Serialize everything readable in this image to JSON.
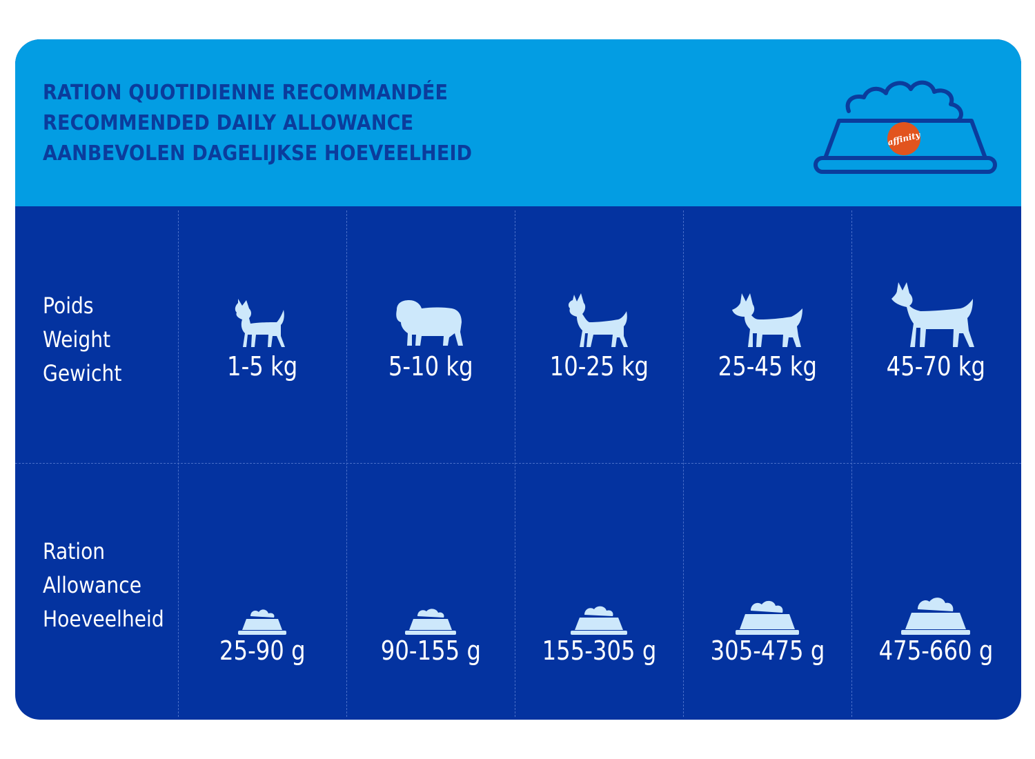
{
  "header": {
    "title_fr": "RATION QUOTIDIENNE RECOMMANDÉE",
    "title_en": "RECOMMENDED DAILY ALLOWANCE",
    "title_nl": "AANBEVOLEN DAGELIJKSE HOEVEELHEID",
    "logo_text": "affinity",
    "icon": "food-bowl-icon"
  },
  "weight_row": {
    "label_fr": "Poids",
    "label_en": "Weight",
    "label_nl": "Gewicht",
    "values": [
      "1-5 kg",
      "5-10 kg",
      "10-25 kg",
      "25-45 kg",
      "45-70 kg"
    ],
    "icons": [
      "chihuahua-icon",
      "bulldog-icon",
      "boxer-icon",
      "husky-icon",
      "great-dane-icon"
    ]
  },
  "ration_row": {
    "label_fr": "Ration",
    "label_en": "Allowance",
    "label_nl": "Hoeveelheid",
    "values": [
      "25-90 g",
      "90-155 g",
      "155-305 g",
      "305-475 g",
      "475-660 g"
    ],
    "icon": "kibble-bowl-icon"
  },
  "colors": {
    "header_bg": "#039de3",
    "body_bg": "#0433a0",
    "title_text": "#0b3c9c",
    "icon_fill": "#cde8fb",
    "logo_badge": "#e2541e"
  }
}
